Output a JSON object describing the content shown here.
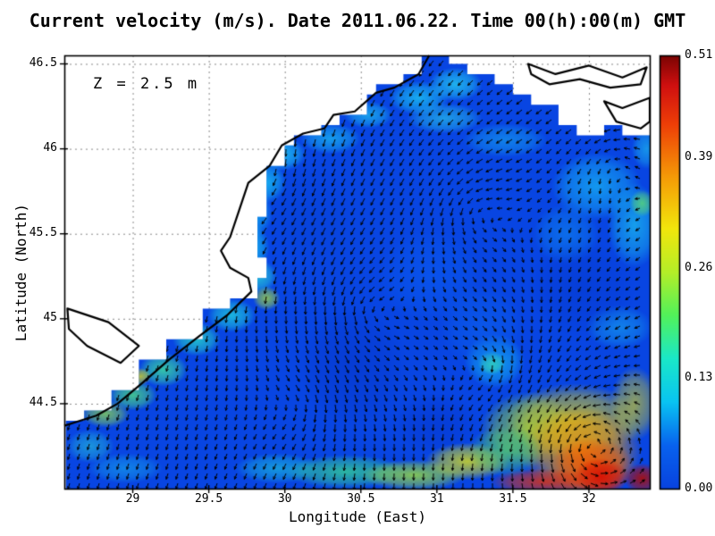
{
  "chart_data": {
    "type": "heatmap",
    "subtype": "vector-field-quiver-over-speed-map",
    "title": "Current velocity (m/s). Date 2011.06.22. Time 00(h):00(m) GMT",
    "annotation": "Z = 2.5 m",
    "xlabel": "Longitude (East)",
    "ylabel": "Latitude (North)",
    "xlim": [
      28.55,
      32.4
    ],
    "ylim": [
      44.0,
      46.55
    ],
    "x_ticks": [
      29,
      29.5,
      30,
      30.5,
      31,
      31.5,
      32
    ],
    "x_tick_labels": [
      "29",
      "29.5",
      "30",
      "30.5",
      "31",
      "31.5",
      "32"
    ],
    "y_ticks": [
      44.5,
      45,
      45.5,
      46,
      46.5
    ],
    "y_tick_labels": [
      "44.5",
      "45",
      "45.5",
      "46",
      "46.5"
    ],
    "grid": true,
    "legend_position": "none",
    "colorbar": {
      "position": "right",
      "min": 0,
      "max": 0.51,
      "ticks": [
        0,
        0.13,
        0.26,
        0.39,
        0.51
      ],
      "tick_labels": [
        "0.00",
        "0.13",
        "0.26",
        "0.39",
        "0.51"
      ],
      "colormap": "jet",
      "stops": [
        [
          0.0,
          "#0843df"
        ],
        [
          0.1,
          "#0862ee"
        ],
        [
          0.2,
          "#09c4f2"
        ],
        [
          0.3,
          "#1ae8c8"
        ],
        [
          0.4,
          "#52f25a"
        ],
        [
          0.5,
          "#b4ee28"
        ],
        [
          0.6,
          "#f2e60c"
        ],
        [
          0.72,
          "#f59a07"
        ],
        [
          0.84,
          "#ee3f07"
        ],
        [
          0.93,
          "#d01010"
        ],
        [
          1.0,
          "#7a0403"
        ]
      ]
    },
    "geometry": {
      "base_color": "#0845e2",
      "coastline": [
        [
          30.95,
          46.55
        ],
        [
          30.88,
          46.44
        ],
        [
          30.72,
          46.36
        ],
        [
          30.6,
          46.33
        ],
        [
          30.46,
          46.22
        ],
        [
          30.32,
          46.2
        ],
        [
          30.26,
          46.12
        ],
        [
          30.12,
          46.09
        ],
        [
          29.98,
          46.02
        ],
        [
          29.9,
          45.9
        ],
        [
          29.76,
          45.8
        ],
        [
          29.7,
          45.64
        ],
        [
          29.64,
          45.48
        ],
        [
          29.58,
          45.4
        ],
        [
          29.64,
          45.3
        ],
        [
          29.76,
          45.24
        ],
        [
          29.78,
          45.16
        ],
        [
          29.62,
          45.02
        ],
        [
          29.44,
          44.9
        ],
        [
          29.24,
          44.76
        ],
        [
          29.06,
          44.62
        ],
        [
          28.9,
          44.5
        ],
        [
          28.76,
          44.43
        ],
        [
          28.62,
          44.39
        ],
        [
          28.55,
          44.37
        ]
      ],
      "field_boundary": [
        [
          31.05,
          46.55
        ],
        [
          30.92,
          46.46
        ],
        [
          30.78,
          46.38
        ],
        [
          30.62,
          46.32
        ],
        [
          30.52,
          46.2
        ],
        [
          30.38,
          46.14
        ],
        [
          30.22,
          46.08
        ],
        [
          30.08,
          46.0
        ],
        [
          29.98,
          45.9
        ],
        [
          29.9,
          45.78
        ],
        [
          29.86,
          45.62
        ],
        [
          29.82,
          45.48
        ],
        [
          29.84,
          45.34
        ],
        [
          29.9,
          45.22
        ],
        [
          29.8,
          45.12
        ],
        [
          29.62,
          45.04
        ],
        [
          29.44,
          44.9
        ],
        [
          29.24,
          44.74
        ],
        [
          29.04,
          44.58
        ],
        [
          28.86,
          44.46
        ],
        [
          28.7,
          44.41
        ],
        [
          28.55,
          44.38
        ],
        [
          28.55,
          44.0
        ],
        [
          32.4,
          44.0
        ],
        [
          32.4,
          46.08
        ],
        [
          32.24,
          46.12
        ],
        [
          32.08,
          46.08
        ],
        [
          31.92,
          46.16
        ],
        [
          31.78,
          46.26
        ],
        [
          31.62,
          46.3
        ],
        [
          31.5,
          46.38
        ],
        [
          31.38,
          46.44
        ],
        [
          31.22,
          46.5
        ],
        [
          31.05,
          46.55
        ]
      ],
      "land_shapes": [
        [
          [
            31.6,
            46.5
          ],
          [
            31.78,
            46.44
          ],
          [
            32.0,
            46.49
          ],
          [
            32.22,
            46.42
          ],
          [
            32.38,
            46.48
          ],
          [
            32.34,
            46.38
          ],
          [
            32.14,
            46.36
          ],
          [
            31.94,
            46.41
          ],
          [
            31.74,
            46.38
          ],
          [
            31.62,
            46.44
          ]
        ],
        [
          [
            32.4,
            46.3
          ],
          [
            32.22,
            46.24
          ],
          [
            32.1,
            46.28
          ],
          [
            32.18,
            46.16
          ],
          [
            32.34,
            46.12
          ],
          [
            32.4,
            46.16
          ]
        ],
        [
          [
            28.57,
            45.06
          ],
          [
            28.84,
            44.98
          ],
          [
            29.04,
            44.84
          ],
          [
            28.92,
            44.74
          ],
          [
            28.7,
            44.84
          ],
          [
            28.58,
            44.94
          ]
        ]
      ],
      "blobs": [
        [
          29.98,
          45.97,
          0.16,
          0.1,
          "#1ec8f2",
          0.85
        ],
        [
          29.88,
          45.8,
          0.13,
          0.12,
          "#18c4f2",
          0.8
        ],
        [
          29.8,
          45.62,
          0.12,
          0.14,
          "#14baf0",
          0.75
        ],
        [
          29.78,
          45.42,
          0.12,
          0.14,
          "#18c8f0",
          0.8
        ],
        [
          29.82,
          45.25,
          0.13,
          0.1,
          "#2ad8d8",
          0.8
        ],
        [
          29.88,
          45.12,
          0.09,
          0.07,
          "#b8ec28",
          0.7
        ],
        [
          29.65,
          45.02,
          0.16,
          0.1,
          "#20d0dc",
          0.8
        ],
        [
          29.42,
          44.88,
          0.16,
          0.1,
          "#28dcc8",
          0.8
        ],
        [
          29.2,
          44.7,
          0.16,
          0.1,
          "#40e49c",
          0.8
        ],
        [
          29.05,
          44.66,
          0.07,
          0.05,
          "#e8e410",
          0.75
        ],
        [
          29.0,
          44.55,
          0.16,
          0.09,
          "#54e878",
          0.75
        ],
        [
          28.82,
          44.44,
          0.16,
          0.08,
          "#9ce83c",
          0.7
        ],
        [
          28.7,
          44.6,
          0.1,
          0.12,
          "#22ccdc",
          0.65
        ],
        [
          28.72,
          44.25,
          0.16,
          0.1,
          "#28c8d8",
          0.6
        ],
        [
          28.95,
          44.12,
          0.25,
          0.09,
          "#1ab4ec",
          0.55
        ],
        [
          30.3,
          46.06,
          0.2,
          0.09,
          "#1cc0f0",
          0.7
        ],
        [
          30.55,
          46.2,
          0.16,
          0.08,
          "#20c8f0",
          0.7
        ],
        [
          30.88,
          46.3,
          0.2,
          0.1,
          "#1cc4f2",
          0.8
        ],
        [
          31.12,
          46.38,
          0.18,
          0.1,
          "#24ccf0",
          0.8
        ],
        [
          31.05,
          46.18,
          0.25,
          0.09,
          "#2cd4e8",
          0.6
        ],
        [
          31.45,
          46.05,
          0.28,
          0.1,
          "#18b0f0",
          0.55
        ],
        [
          32.05,
          45.78,
          0.3,
          0.2,
          "#16acf2",
          0.8
        ],
        [
          32.3,
          45.55,
          0.18,
          0.25,
          "#1cc4f0",
          0.7
        ],
        [
          31.85,
          45.5,
          0.22,
          0.18,
          "#0f8cf0",
          0.55
        ],
        [
          32.35,
          45.68,
          0.08,
          0.08,
          "#66e862",
          0.7
        ],
        [
          32.2,
          44.95,
          0.22,
          0.13,
          "#18a8f0",
          0.6
        ],
        [
          32.38,
          46.0,
          0.1,
          0.12,
          "#20c8f0",
          0.6
        ],
        [
          31.38,
          44.75,
          0.2,
          0.16,
          "#16b4f0",
          0.8
        ],
        [
          31.36,
          44.74,
          0.09,
          0.07,
          "#38e0b4",
          0.8
        ],
        [
          30.95,
          45.25,
          0.35,
          0.28,
          "#0a58ee",
          0.7
        ],
        [
          31.3,
          44.95,
          0.28,
          0.25,
          "#0c62ee",
          0.6
        ],
        [
          30.45,
          44.72,
          0.35,
          0.35,
          "#0534c8",
          0.55
        ],
        [
          31.95,
          45.18,
          0.35,
          0.28,
          "#0536cc",
          0.45
        ],
        [
          30.15,
          45.62,
          0.28,
          0.28,
          "#0740d4",
          0.45
        ],
        [
          31.0,
          44.38,
          0.28,
          0.18,
          "#0535cc",
          0.5
        ],
        [
          29.95,
          44.12,
          0.28,
          0.09,
          "#1cc4dc",
          0.65
        ],
        [
          30.4,
          44.1,
          0.4,
          0.1,
          "#38dc8c",
          0.75
        ],
        [
          30.85,
          44.08,
          0.35,
          0.09,
          "#a0e438",
          0.8
        ],
        [
          31.2,
          44.16,
          0.28,
          0.11,
          "#e0e414",
          0.8
        ],
        [
          31.6,
          44.35,
          0.32,
          0.22,
          "#9ce030",
          0.7
        ],
        [
          31.9,
          44.4,
          0.45,
          0.22,
          "#ecd80a",
          0.75
        ],
        [
          31.95,
          44.22,
          0.4,
          0.26,
          "#f29c06",
          0.9
        ],
        [
          32.02,
          44.13,
          0.28,
          0.17,
          "#ee5606",
          0.95
        ],
        [
          32.08,
          44.07,
          0.18,
          0.11,
          "#d81405",
          1.0
        ],
        [
          32.3,
          44.5,
          0.16,
          0.22,
          "#e8dc0a",
          0.6
        ],
        [
          31.7,
          44.04,
          0.35,
          0.08,
          "#e83007",
          0.8
        ],
        [
          32.35,
          44.06,
          0.12,
          0.09,
          "#b00c04",
          0.9
        ],
        [
          31.45,
          44.22,
          0.25,
          0.15,
          "#54d868",
          0.65
        ]
      ],
      "vortices": [
        [
          30.55,
          45.05,
          1.0
        ],
        [
          31.35,
          44.72,
          -0.7
        ],
        [
          31.25,
          45.65,
          0.8
        ],
        [
          32.0,
          44.25,
          1.6
        ],
        [
          29.9,
          45.85,
          -0.5
        ],
        [
          30.1,
          44.5,
          -0.6
        ],
        [
          32.15,
          45.95,
          0.5
        ]
      ]
    }
  }
}
